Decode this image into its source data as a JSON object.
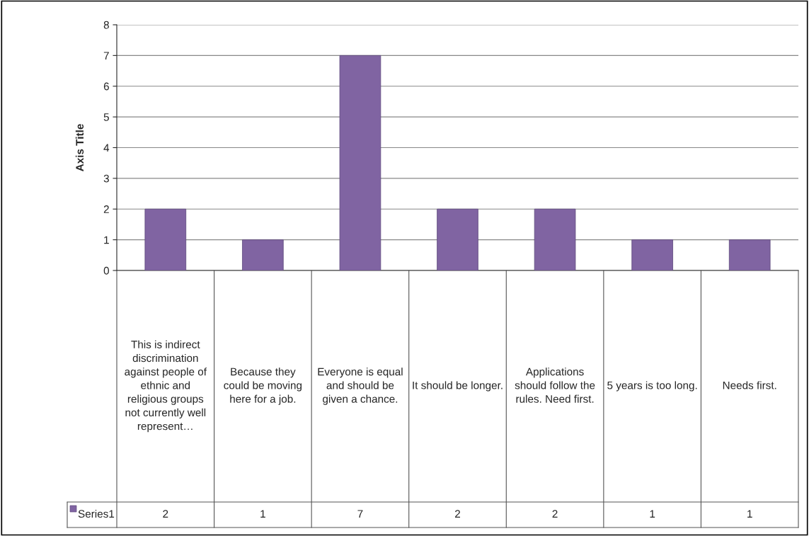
{
  "chart_data": {
    "type": "bar",
    "ylabel": "Axis Title",
    "categories": [
      "This is indirect discrimination against people of ethnic and religious groups not currently well represent…",
      "Because they could be moving here for a job.",
      "Everyone is equal and should be given a chance.",
      "It should be longer.",
      "Applications should follow the rules. Need first.",
      "5 years is too long.",
      "Needs first."
    ],
    "series": [
      {
        "name": "Series1",
        "color": "#8064a2",
        "values": [
          2,
          1,
          7,
          2,
          2,
          1,
          1
        ]
      }
    ],
    "ylim": [
      0,
      8
    ],
    "yticks": [
      0,
      1,
      2,
      3,
      4,
      5,
      6,
      7,
      8
    ],
    "grid": "y",
    "data_labels": true
  }
}
